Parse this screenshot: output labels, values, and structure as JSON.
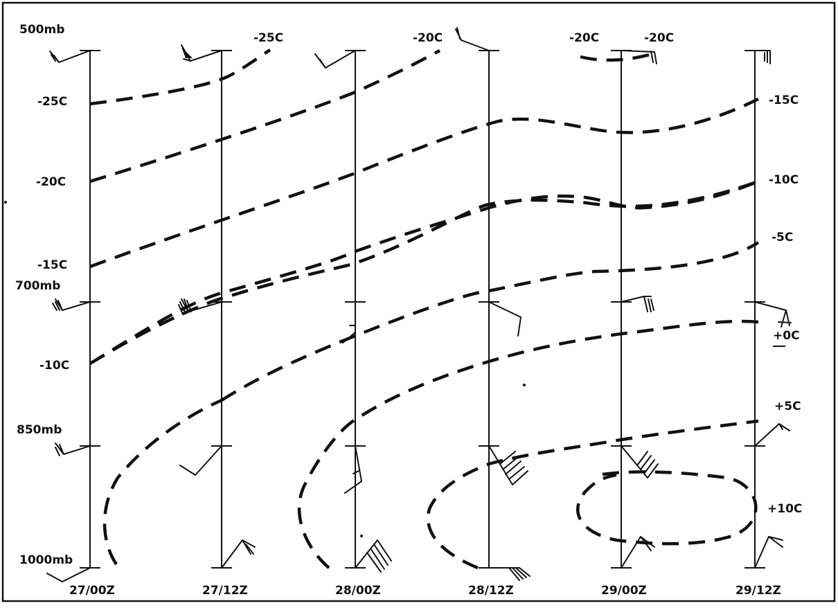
{
  "pressure_levels": [
    "500mb",
    "700mb",
    "850mb",
    "1000mb"
  ],
  "times": [
    "27/00Z",
    "27/12Z",
    "28/00Z",
    "28/12Z",
    "29/00Z",
    "29/12Z"
  ],
  "isotherm_labels_left": [
    "-25C",
    "-20C",
    "-15C",
    "-10C"
  ],
  "isotherm_labels_right": [
    "-15C",
    "-10C",
    "-5C",
    "+0C",
    "+5C",
    "+10C"
  ],
  "isotherm_labels_top": [
    "-25C",
    "-20C",
    "-20C",
    "-20C"
  ],
  "colors": {
    "ink": "#111111",
    "paper": "#ffffff"
  },
  "icons": {
    "wind": "wind-barb-icon"
  }
}
